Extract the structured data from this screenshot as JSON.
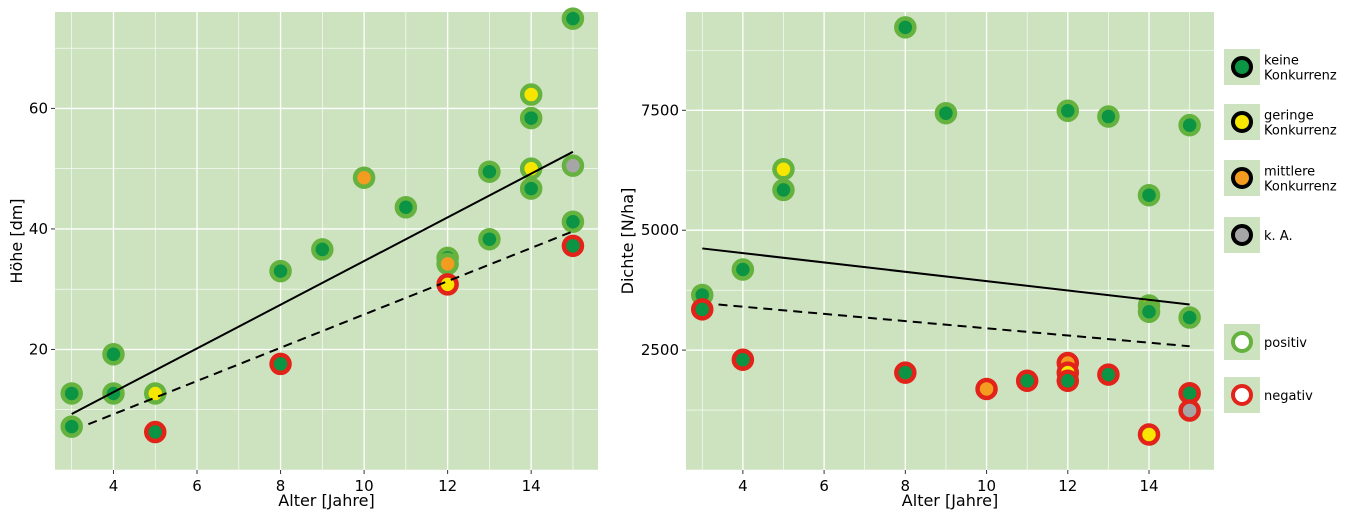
{
  "colors": {
    "panel_bg": "#cde3c0",
    "grid": "#ffffff",
    "competition": {
      "none": "#0a9444",
      "low": "#f6e600",
      "medium": "#f39c1f",
      "na": "#a6a6a6"
    },
    "effect": {
      "positive": "#65b23f",
      "negative": "#e2231a"
    },
    "line": "#000000"
  },
  "legend": {
    "competition": [
      {
        "key": "none",
        "label_lines": [
          "keine",
          "Konkurrenz"
        ]
      },
      {
        "key": "low",
        "label_lines": [
          "geringe",
          "Konkurrenz"
        ]
      },
      {
        "key": "medium",
        "label_lines": [
          "mittlere",
          "Konkurrenz"
        ]
      },
      {
        "key": "na",
        "label_lines": [
          "k. A."
        ]
      }
    ],
    "effect": [
      {
        "key": "positive",
        "label": "positiv"
      },
      {
        "key": "negative",
        "label": "negativ"
      }
    ]
  },
  "chart_data": [
    {
      "type": "scatter",
      "xlabel": "Alter [Jahre]",
      "ylabel": "Höhe [dm]",
      "xlim": [
        2.6,
        15.6
      ],
      "ylim": [
        0,
        76
      ],
      "xticks": [
        4,
        6,
        8,
        10,
        12,
        14
      ],
      "yticks": [
        20,
        40,
        60
      ],
      "grid": true,
      "points": [
        {
          "x": 3,
          "y": 12.7,
          "competition": "none",
          "effect": "positive"
        },
        {
          "x": 3,
          "y": 7.2,
          "competition": "none",
          "effect": "positive"
        },
        {
          "x": 4,
          "y": 19.2,
          "competition": "none",
          "effect": "positive"
        },
        {
          "x": 4,
          "y": 12.7,
          "competition": "none",
          "effect": "positive"
        },
        {
          "x": 5,
          "y": 12.7,
          "competition": "low",
          "effect": "positive"
        },
        {
          "x": 5,
          "y": 6.3,
          "competition": "none",
          "effect": "negative"
        },
        {
          "x": 8,
          "y": 33,
          "competition": "none",
          "effect": "positive"
        },
        {
          "x": 8,
          "y": 17.6,
          "competition": "none",
          "effect": "negative"
        },
        {
          "x": 9,
          "y": 36.6,
          "competition": "none",
          "effect": "positive"
        },
        {
          "x": 10,
          "y": 48.5,
          "competition": "medium",
          "effect": "positive"
        },
        {
          "x": 11,
          "y": 43.6,
          "competition": "none",
          "effect": "positive"
        },
        {
          "x": 12,
          "y": 35.2,
          "competition": "none",
          "effect": "positive"
        },
        {
          "x": 12,
          "y": 34.2,
          "competition": "medium",
          "effect": "positive"
        },
        {
          "x": 12,
          "y": 30.8,
          "competition": "low",
          "effect": "negative"
        },
        {
          "x": 13,
          "y": 49.5,
          "competition": "none",
          "effect": "positive"
        },
        {
          "x": 13,
          "y": 38.3,
          "competition": "none",
          "effect": "positive"
        },
        {
          "x": 14,
          "y": 62.3,
          "competition": "low",
          "effect": "positive"
        },
        {
          "x": 14,
          "y": 58.4,
          "competition": "none",
          "effect": "positive"
        },
        {
          "x": 14,
          "y": 50,
          "competition": "low",
          "effect": "positive"
        },
        {
          "x": 14,
          "y": 46.7,
          "competition": "none",
          "effect": "positive"
        },
        {
          "x": 15,
          "y": 74.9,
          "competition": "none",
          "effect": "positive"
        },
        {
          "x": 15,
          "y": 50.5,
          "competition": "na",
          "effect": "positive"
        },
        {
          "x": 15,
          "y": 41.2,
          "competition": "none",
          "effect": "positive"
        },
        {
          "x": 15,
          "y": 37.2,
          "competition": "none",
          "effect": "negative"
        }
      ],
      "lines": [
        {
          "style": "solid",
          "x": [
            3,
            15
          ],
          "y": [
            9.3,
            52.8
          ]
        },
        {
          "style": "dashed",
          "x": [
            3.4,
            15
          ],
          "y": [
            7.6,
            39.6
          ]
        }
      ]
    },
    {
      "type": "scatter",
      "xlabel": "Alter [Jahre]",
      "ylabel": "Dichte [N/ha]",
      "xlim": [
        2.6,
        15.6
      ],
      "ylim": [
        0,
        9550
      ],
      "xticks": [
        4,
        6,
        8,
        10,
        12,
        14
      ],
      "yticks": [
        2500,
        5000,
        7500
      ],
      "grid": true,
      "points": [
        {
          "x": 3,
          "y": 3650,
          "competition": "none",
          "effect": "positive"
        },
        {
          "x": 3,
          "y": 3350,
          "competition": "none",
          "effect": "negative"
        },
        {
          "x": 4,
          "y": 4180,
          "competition": "none",
          "effect": "positive"
        },
        {
          "x": 4,
          "y": 2300,
          "competition": "none",
          "effect": "negative"
        },
        {
          "x": 5,
          "y": 6270,
          "competition": "low",
          "effect": "positive"
        },
        {
          "x": 5,
          "y": 5840,
          "competition": "none",
          "effect": "positive"
        },
        {
          "x": 8,
          "y": 9230,
          "competition": "none",
          "effect": "positive"
        },
        {
          "x": 8,
          "y": 2030,
          "competition": "none",
          "effect": "negative"
        },
        {
          "x": 9,
          "y": 7440,
          "competition": "none",
          "effect": "positive"
        },
        {
          "x": 10,
          "y": 1690,
          "competition": "medium",
          "effect": "negative"
        },
        {
          "x": 11,
          "y": 1860,
          "competition": "none",
          "effect": "negative"
        },
        {
          "x": 12,
          "y": 7490,
          "competition": "none",
          "effect": "positive"
        },
        {
          "x": 12,
          "y": 2230,
          "competition": "medium",
          "effect": "negative"
        },
        {
          "x": 12,
          "y": 2030,
          "competition": "low",
          "effect": "negative"
        },
        {
          "x": 12,
          "y": 1860,
          "competition": "none",
          "effect": "negative"
        },
        {
          "x": 13,
          "y": 7370,
          "competition": "none",
          "effect": "positive"
        },
        {
          "x": 13,
          "y": 1990,
          "competition": "none",
          "effect": "negative"
        },
        {
          "x": 14,
          "y": 5730,
          "competition": "none",
          "effect": "positive"
        },
        {
          "x": 14,
          "y": 3430,
          "competition": "low",
          "effect": "positive"
        },
        {
          "x": 14,
          "y": 3300,
          "competition": "none",
          "effect": "positive"
        },
        {
          "x": 14,
          "y": 740,
          "competition": "low",
          "effect": "negative"
        },
        {
          "x": 15,
          "y": 7190,
          "competition": "none",
          "effect": "positive"
        },
        {
          "x": 15,
          "y": 3180,
          "competition": "none",
          "effect": "positive"
        },
        {
          "x": 15,
          "y": 1600,
          "competition": "none",
          "effect": "negative"
        },
        {
          "x": 15,
          "y": 1240,
          "competition": "na",
          "effect": "negative"
        }
      ],
      "lines": [
        {
          "style": "solid",
          "x": [
            3,
            15
          ],
          "y": [
            4620,
            3450
          ]
        },
        {
          "style": "dashed",
          "x": [
            3.4,
            15
          ],
          "y": [
            3450,
            2580
          ]
        }
      ]
    }
  ]
}
